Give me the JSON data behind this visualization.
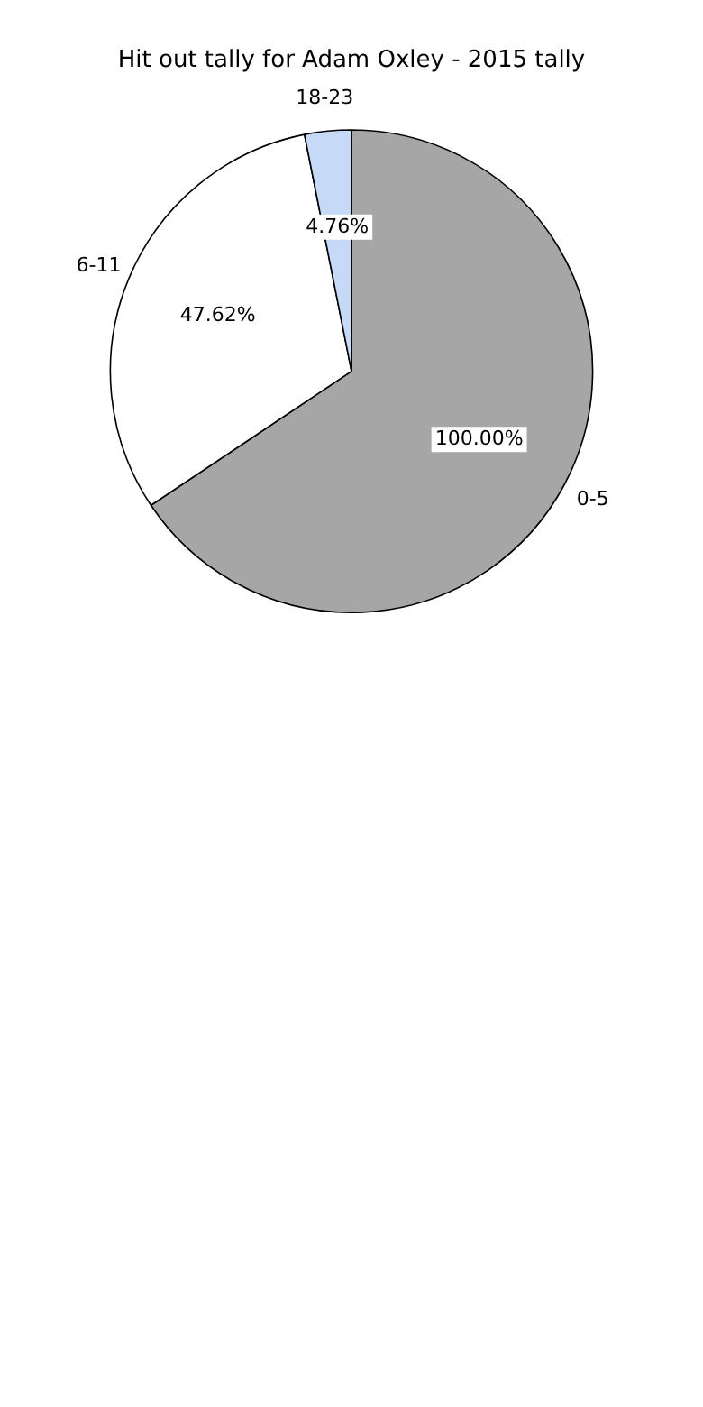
{
  "chart_data": {
    "type": "pie",
    "title": "Hit out tally for Adam Oxley - 2015 tally",
    "categories": [
      "0-5",
      "6-11",
      "18-23"
    ],
    "values": [
      100,
      47.62,
      4.76
    ],
    "value_labels": [
      "100.00%",
      "47.62%",
      "4.76%"
    ],
    "colors": [
      "#a6a6a6",
      "#ffffff",
      "#c6d9f7"
    ],
    "legend": false
  }
}
